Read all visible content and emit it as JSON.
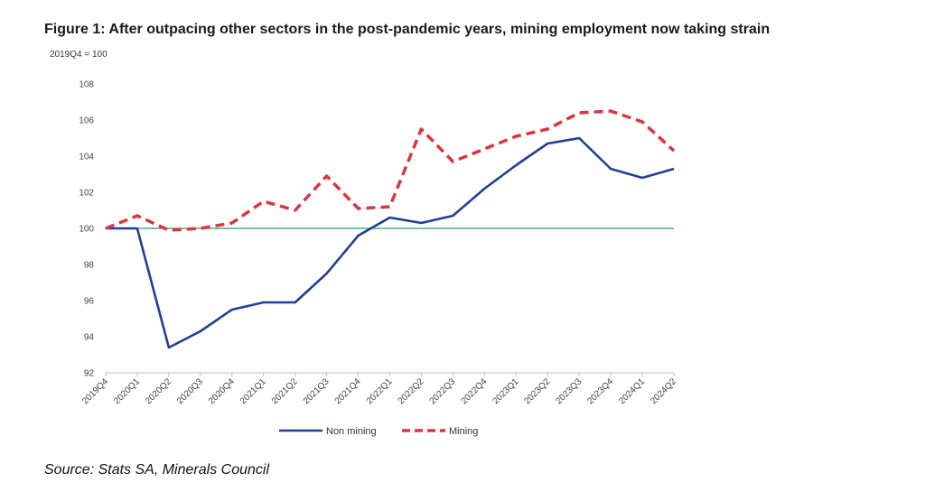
{
  "chart_data": {
    "type": "line",
    "title": "Figure 1: After outpacing other sectors in the post-pandemic years, mining employment now taking strain",
    "ylabel": "2019Q4 = 100",
    "xlabel": "",
    "categories": [
      "2019Q4",
      "2020Q1",
      "2020Q2",
      "2020Q3",
      "2020Q4",
      "2021Q1",
      "2021Q2",
      "2021Q3",
      "2021Q4",
      "2022Q1",
      "2022Q2",
      "2022Q3",
      "2022Q4",
      "2023Q1",
      "2023Q2",
      "2023Q3",
      "2023Q4",
      "2024Q1",
      "2024Q2"
    ],
    "ylim": [
      92,
      108
    ],
    "yticks": [
      92,
      94,
      96,
      98,
      100,
      102,
      104,
      106,
      108
    ],
    "reference_line": 100,
    "grid": false,
    "legend": "bottom",
    "series": [
      {
        "name": "Non mining",
        "color": "#1f3f99",
        "dash": false,
        "values": [
          100.0,
          100.0,
          93.4,
          94.3,
          95.5,
          95.9,
          95.9,
          97.5,
          99.6,
          100.6,
          100.3,
          100.7,
          102.2,
          103.5,
          104.7,
          105.0,
          103.3,
          102.8,
          103.3
        ]
      },
      {
        "name": "Mining",
        "color": "#d9363e",
        "dash": true,
        "values": [
          100.0,
          100.7,
          99.9,
          100.0,
          100.3,
          101.5,
          101.0,
          102.9,
          101.1,
          101.2,
          105.5,
          103.7,
          104.4,
          105.1,
          105.5,
          106.4,
          106.5,
          105.9,
          104.3
        ]
      }
    ],
    "reference_color": "#2a9d5c",
    "source": "Source: Stats SA, Minerals Council"
  }
}
